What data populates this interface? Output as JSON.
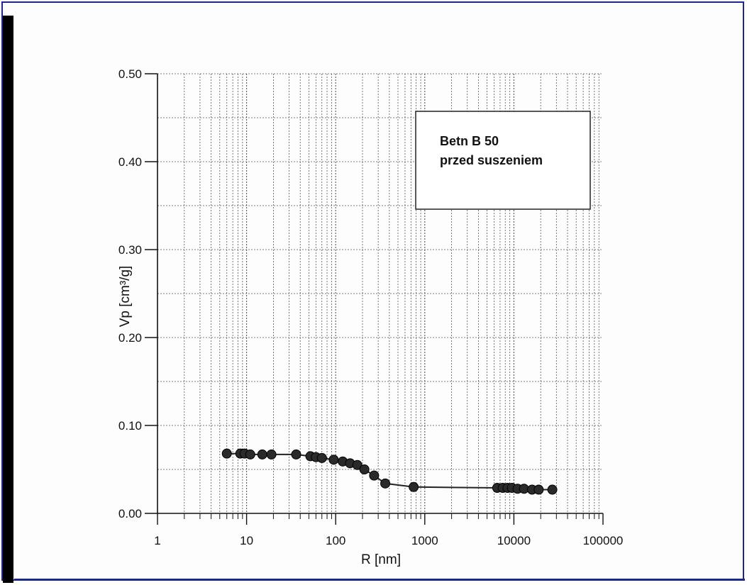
{
  "chart_data": {
    "type": "line",
    "title": "",
    "xlabel": "R [nm]",
    "ylabel": "Vp [cm³/g]",
    "xscale": "log",
    "xlim": [
      1,
      100000
    ],
    "ylim": [
      0.0,
      0.5
    ],
    "x_ticks": [
      "1",
      "10",
      "100",
      "1000",
      "10000",
      "100000"
    ],
    "y_ticks": [
      "0.00",
      "0.10",
      "0.20",
      "0.30",
      "0.40",
      "0.50"
    ],
    "grid": true,
    "legend_position": "top-right",
    "annotation": [
      "Betn B 50",
      "przed suszeniem"
    ],
    "series": [
      {
        "x": [
          6,
          8.5,
          9.5,
          11,
          15,
          19,
          36,
          52,
          60,
          70,
          95,
          120,
          145,
          175,
          210,
          270,
          360,
          750,
          6500,
          7500,
          8500,
          9500,
          11000,
          13000,
          16000,
          19000,
          27000
        ],
        "y": [
          0.068,
          0.068,
          0.068,
          0.067,
          0.067,
          0.067,
          0.067,
          0.065,
          0.064,
          0.063,
          0.061,
          0.059,
          0.057,
          0.055,
          0.05,
          0.043,
          0.034,
          0.03,
          0.029,
          0.029,
          0.029,
          0.029,
          0.028,
          0.028,
          0.027,
          0.027,
          0.027
        ]
      }
    ]
  },
  "colors": {
    "frame": "#1c2a8c",
    "left_bar": "#000000",
    "marker": "#2a2a2a",
    "grid": "#555555"
  }
}
